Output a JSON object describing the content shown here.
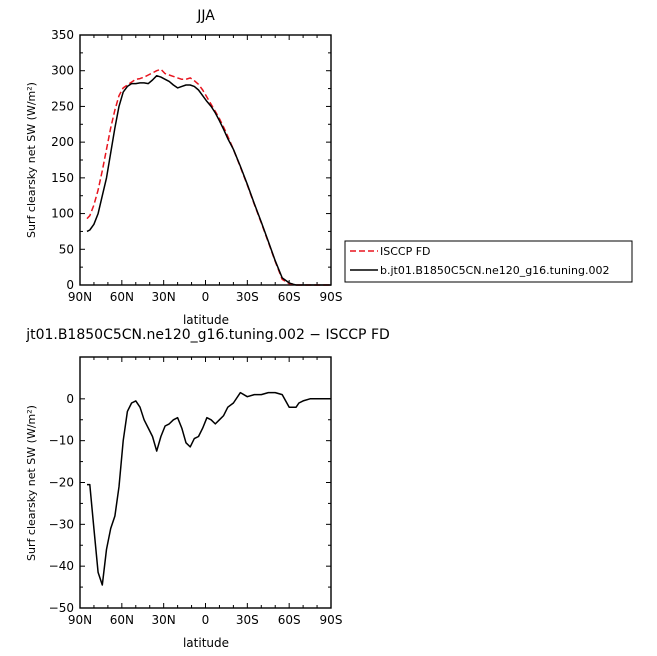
{
  "chart_data": [
    {
      "type": "line",
      "title": "JJA",
      "xlabel": "latitude",
      "ylabel": "Surf clearsky net SW (W/m²)",
      "xlim": [
        90,
        -90
      ],
      "ylim": [
        0,
        350
      ],
      "xticks": [
        90,
        60,
        30,
        0,
        -30,
        -60,
        -90
      ],
      "xtick_labels": [
        "90N",
        "60N",
        "30N",
        "0",
        "30S",
        "60S",
        "90S"
      ],
      "yticks": [
        0,
        50,
        100,
        150,
        200,
        250,
        300,
        350
      ],
      "ytick_labels": [
        "0",
        "50",
        "100",
        "150",
        "200",
        "250",
        "300",
        "350"
      ],
      "legend": "right, outside",
      "series": [
        {
          "name": "ISCCP FD",
          "color": "#e8141e",
          "dash": "dashed",
          "x": [
            85,
            83,
            80,
            77,
            74,
            71,
            68,
            65,
            62,
            59,
            56,
            53,
            50,
            47,
            44,
            41,
            38,
            35,
            32,
            29,
            26,
            23,
            20,
            17,
            14,
            11,
            8,
            5,
            2,
            -1,
            -4,
            -7,
            -10,
            -13,
            -16,
            -20,
            -25,
            -30,
            -35,
            -40,
            -45,
            -50,
            -55,
            -60,
            -63,
            -65,
            -67,
            -70,
            -75,
            -80,
            -85,
            -90
          ],
          "values": [
            93,
            97,
            112,
            133,
            160,
            190,
            220,
            245,
            265,
            276,
            280,
            284,
            288,
            289,
            291,
            294,
            297,
            300,
            302,
            296,
            294,
            292,
            290,
            288,
            288,
            290,
            286,
            281,
            273,
            263,
            253,
            243,
            233,
            221,
            208,
            190,
            165,
            140,
            113,
            87,
            60,
            33,
            8,
            2,
            1,
            0,
            0,
            0,
            0,
            0,
            0,
            0
          ]
        },
        {
          "name": "b.jt01.B1850C5CN.ne120_g16.tuning.002",
          "color": "#000000",
          "dash": "solid",
          "x": [
            85,
            83,
            80,
            77,
            74,
            71,
            68,
            65,
            62,
            59,
            56,
            53,
            50,
            47,
            44,
            41,
            38,
            35,
            32,
            29,
            26,
            23,
            20,
            17,
            14,
            11,
            8,
            5,
            2,
            -1,
            -4,
            -7,
            -10,
            -13,
            -16,
            -20,
            -25,
            -30,
            -35,
            -40,
            -45,
            -50,
            -55,
            -60,
            -63,
            -65,
            -67,
            -70,
            -75,
            -80,
            -85,
            -90
          ],
          "values": [
            75,
            77,
            85,
            100,
            125,
            150,
            185,
            220,
            250,
            270,
            278,
            282,
            282,
            283,
            283,
            282,
            287,
            293,
            291,
            288,
            285,
            280,
            276,
            278,
            280,
            280,
            278,
            273,
            265,
            257,
            250,
            241,
            230,
            218,
            205,
            190,
            166,
            141,
            114,
            88,
            61,
            34,
            10,
            3,
            1,
            0,
            0,
            0,
            0,
            0,
            0,
            0
          ]
        }
      ]
    },
    {
      "type": "line",
      "title": "jt01.B1850C5CN.ne120_g16.tuning.002 − ISCCP FD",
      "xlabel": "latitude",
      "ylabel": "Surf clearsky net SW (W/m²)",
      "xlim": [
        90,
        -90
      ],
      "ylim": [
        -50,
        10
      ],
      "xticks": [
        90,
        60,
        30,
        0,
        -30,
        -60,
        -90
      ],
      "xtick_labels": [
        "90N",
        "60N",
        "30N",
        "0",
        "30S",
        "60S",
        "90S"
      ],
      "yticks": [
        -50,
        -40,
        -30,
        -20,
        -10,
        0
      ],
      "ytick_labels": [
        "−50",
        "−40",
        "−30",
        "−20",
        "−10",
        "0"
      ],
      "series": [
        {
          "color": "#000000",
          "dash": "solid",
          "x": [
            85,
            83,
            80,
            77,
            74,
            71,
            68,
            65,
            62,
            59,
            56,
            53,
            50,
            47,
            44,
            41,
            38,
            35,
            32,
            29,
            26,
            23,
            20,
            17,
            14,
            11,
            8,
            5,
            2,
            -1,
            -4,
            -7,
            -10,
            -13,
            -16,
            -20,
            -25,
            -30,
            -35,
            -40,
            -45,
            -50,
            -55,
            -60,
            -63,
            -65,
            -67,
            -70,
            -75,
            -80,
            -85,
            -90
          ],
          "values": [
            -20.5,
            -20.5,
            -31,
            -41.5,
            -44.5,
            -36,
            -31,
            -28,
            -21,
            -10,
            -3,
            -1,
            -0.5,
            -2,
            -5,
            -7,
            -9,
            -12.5,
            -9,
            -6.5,
            -6,
            -5,
            -4.5,
            -7,
            -10.5,
            -11.5,
            -9.5,
            -9,
            -7,
            -4.5,
            -5,
            -6,
            -5,
            -4,
            -2,
            -1,
            1.5,
            0.5,
            1,
            1,
            1.5,
            1.5,
            1,
            -2,
            -2,
            -2,
            -1,
            -0.5,
            0,
            0,
            0,
            0
          ]
        }
      ]
    }
  ]
}
